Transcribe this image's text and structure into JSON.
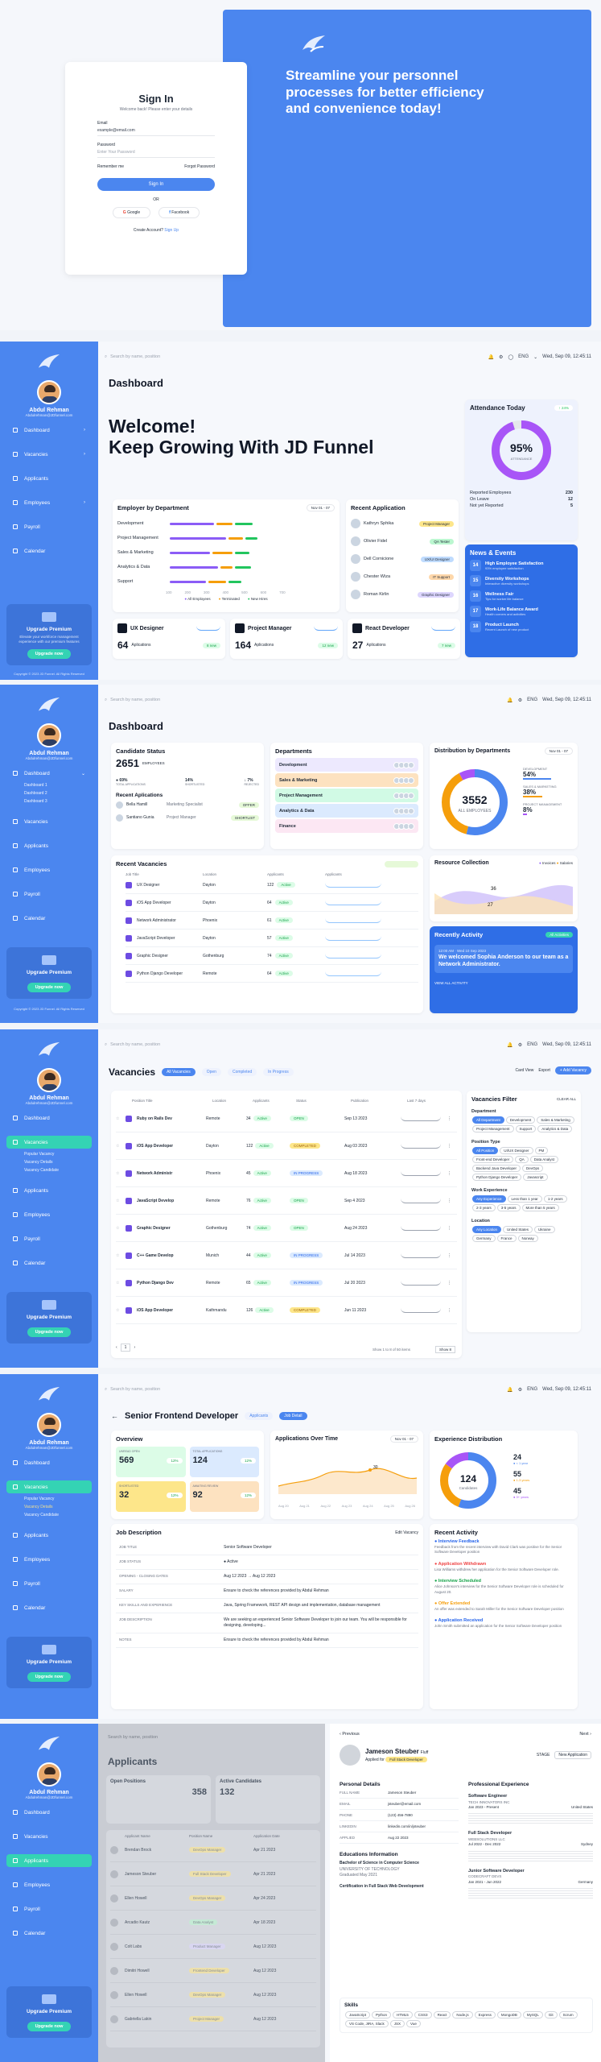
{
  "signin": {
    "hero": "Streamline your personnel processes for better efficiency and convenience today!",
    "title": "Sign In",
    "subtitle": "Welcome back! Please enter your details",
    "email_label": "Email",
    "email_value": "example@email.com",
    "password_label": "Password",
    "password_ph": "Enter Your Password",
    "remember": "Remember me",
    "forgot": "Forgot Password",
    "button": "Sign In",
    "or": "OR",
    "google": "Google",
    "facebook": "Facebook",
    "create": "Create Account?",
    "signup": "Sign Up"
  },
  "sidebar": {
    "name": "Abdul Rehman",
    "email": "Abdulrehman@JDfunnel.com",
    "items": [
      "Dashboard",
      "Vacancies",
      "Applicants",
      "Employees",
      "Payroll",
      "Calendar"
    ],
    "upgrade_title": "Upgrade Premium",
    "upgrade_desc": "Elevate your workforce management experience with our premium features",
    "upgrade_btn": "Upgrade now",
    "copyright": "Copyright © 2023 JD Funnel. All Rights Reserved",
    "sub": [
      "Dashboard 1",
      "Dashboard 2",
      "Dashboard 3"
    ],
    "vac_sub": [
      "Popular Vacancy",
      "Vacancy Details",
      "Vacancy Candidate"
    ]
  },
  "topbar": {
    "search": "Search by name, position",
    "lang": "ENG",
    "date": "Wed, Sep 09, 12:45:11"
  },
  "dash1": {
    "title": "Dashboard",
    "welcome1": "Welcome!",
    "welcome2": "Keep Growing With JD Funnel",
    "att_title": "Attendance Today",
    "att_badge": "↑ 24%",
    "att_pct": "95%",
    "att_label": "ATTENDANCE",
    "att_rows": [
      [
        "Reported Employees",
        "230"
      ],
      [
        "On Leave",
        "12"
      ],
      [
        "Not yet Reported",
        "5"
      ]
    ],
    "emp_title": "Employer by Department",
    "emp_filter": "Nov 01 - 07",
    "depts": [
      "Development",
      "Project Management",
      "Sales & Marketing",
      "Analytics & Data",
      "Support"
    ],
    "axis": [
      "100",
      "200",
      "300",
      "400",
      "500",
      "600",
      "700"
    ],
    "legend": [
      "All Employees",
      "Terminated",
      "New Hires"
    ],
    "recent_title": "Recent Application",
    "recent": [
      [
        "Kathryn Sphika",
        "Project Manager",
        "#fde68a"
      ],
      [
        "Olivier Fidel",
        "QA Tester",
        "#bbf7d0"
      ],
      [
        "Dell Cornicione",
        "UX/UI Designer",
        "#bfdbfe"
      ],
      [
        "Chester Wiza",
        "IT Support",
        "#fed7aa"
      ],
      [
        "Roman Kirlin",
        "Graphic Designer",
        "#ddd6fe"
      ]
    ],
    "news_title": "News & Events",
    "news": [
      [
        "14",
        "High Employee Satisfaction",
        "93% employee satisfaction"
      ],
      [
        "15",
        "Diversity Workshops",
        "Interactive diversity workshops"
      ],
      [
        "16",
        "Wellness Fair",
        "Tips for worker life balance"
      ],
      [
        "17",
        "Work-Life Balance Award",
        "Health corners and activities"
      ],
      [
        "18",
        "Product Launch",
        "Recent Launch of new product"
      ]
    ],
    "stats": [
      [
        "UX Designer",
        "64",
        "Aplications",
        "8 new"
      ],
      [
        "Project Manager",
        "164",
        "Aplications",
        "12 new"
      ],
      [
        "React Developer",
        "27",
        "Aplications",
        "7 new"
      ]
    ]
  },
  "dash2": {
    "title": "Dashboard",
    "cand_title": "Candidate Status",
    "cand_num": "2651",
    "cand_unit": "EMPLOYEES",
    "cand_stats": [
      [
        "● 69%",
        "TOTAL APPLICATIONS"
      ],
      [
        "14%",
        "SHORTLISTED"
      ],
      [
        "↓ 7%",
        "REJECTED"
      ]
    ],
    "recent_title": "Recent Aplications",
    "recent": [
      [
        "Bella Hamill",
        "Marketing Specialist",
        "OFFER"
      ],
      [
        "Santiano Gunia",
        "Project Manager",
        "SHORTLIST"
      ]
    ],
    "dept_title": "Departments",
    "depts": [
      [
        "Development",
        "#ede9fe"
      ],
      [
        "Sales & Marketing",
        "#fde2c0"
      ],
      [
        "Project Management",
        "#d1fae5"
      ],
      [
        "Analytics & Data",
        "#dbeafe"
      ],
      [
        "Finance",
        "#fce7f3"
      ]
    ],
    "dist_title": "Distribution by Departments",
    "dist_filter": "Nov 01 - 07",
    "dist_num": "3552",
    "dist_label": "ALL EMPLOYEES",
    "dist_rows": [
      [
        "DEVELOPMENT",
        "54%"
      ],
      [
        "SALES & MARKETING",
        "38%"
      ],
      [
        "PROJECT MANAGEMENT",
        "8%"
      ]
    ],
    "vac_title": "Recent Vacancies",
    "vac_cols": [
      "Job Title",
      "Location",
      "Applicants",
      "Applicants"
    ],
    "vac_rows": [
      [
        "UX Designer",
        "Dayton",
        "122"
      ],
      [
        "iOS App Developer",
        "Dayton",
        "64"
      ],
      [
        "Network Administrator",
        "Phoenix",
        "61"
      ],
      [
        "JavaScript Developer",
        "Dayton",
        "57"
      ],
      [
        "Graphic Designer",
        "Gothenburg",
        "74"
      ],
      [
        "Python Django Developer",
        "Remote",
        "64"
      ]
    ],
    "res_title": "Resource Collection",
    "res_legend": [
      "Invoices",
      "Salaries"
    ],
    "res_vals": [
      "36",
      "27"
    ],
    "act_title": "Recently Activity",
    "act_badge": "All Activities",
    "act_date": "12:00 AM · Wed 10 Sep 2023",
    "act_text": "We welcomed Sophia Anderson to our team as a Network Administrator.",
    "act_link": "VIEW ALL ACTIVITY"
  },
  "vac": {
    "title": "Vacancies",
    "tabs": [
      "All Vacancies",
      "Open",
      "Completed",
      "In Progress"
    ],
    "card_view": "Card View",
    "export": "Export",
    "add": "+ Add Vacancy",
    "cols": [
      "Position Title",
      "Location",
      "Applicants",
      "Status",
      "Publication",
      "Last 7 days"
    ],
    "rows": [
      [
        "Ruby on Rails Dev",
        "Remote",
        "34",
        "OPEN",
        "Sep 13 2023"
      ],
      [
        "iOS App Developer",
        "Dayton",
        "122",
        "COMPLETED",
        "Aug 03 2023"
      ],
      [
        "Network Administr",
        "Phoenix",
        "45",
        "IN PROGRESS",
        "Aug 18 2023"
      ],
      [
        "JavaScript Develop",
        "Remote",
        "76",
        "OPEN",
        "Sep 4 2023"
      ],
      [
        "Graphic Designer",
        "Gothenburg",
        "74",
        "OPEN",
        "Aug 24 2023"
      ],
      [
        "C++ Game Develop",
        "Munich",
        "44",
        "IN PROGRESS",
        "Jul 14 2023"
      ],
      [
        "Python Django Dev",
        "Remote",
        "65",
        "IN PROGRESS",
        "Jul 20 2023"
      ],
      [
        "iOS App Developer",
        "Kathmandu",
        "126",
        "COMPLETED",
        "Jun 11 2023"
      ]
    ],
    "pager": "Show 1 to 8 of 50 items",
    "perpage": "Show 8",
    "filter_title": "Vacancies Filter",
    "clear": "CLEAR ALL",
    "dept_label": "Department",
    "dept_chips": [
      "All Department",
      "Development",
      "Sales & Marketing",
      "Project Management",
      "Support",
      "Analytics & Data"
    ],
    "pos_label": "Position Type",
    "pos_chips": [
      "All Position",
      "UI/UX Designer",
      "PM",
      "Front-end Developer",
      "QA",
      "Data Analyst",
      "Backend Java Developer",
      "DevOps",
      "Python Django Developer",
      "Javascript"
    ],
    "exp_label": "Work Experience",
    "exp_chips": [
      "Any Experience",
      "Less than 1 year",
      "1-2 years",
      "2-3 years",
      "3-5 years",
      "More than 5 years"
    ],
    "loc_label": "Location",
    "loc_chips": [
      "Any Location",
      "United States",
      "Ukraine",
      "Germany",
      "France",
      "Norway"
    ]
  },
  "detail": {
    "back": "←",
    "title": "Senior Frontend Developer",
    "tab1": "Applicants",
    "tab2": "Job Detail",
    "overview": "Overview",
    "ov": [
      [
        "UNREAD OPEN",
        "569",
        "12%"
      ],
      [
        "TOTAL APPLICATIONS",
        "124",
        "12%"
      ],
      [
        "SHORTLISTED",
        "32",
        "12%"
      ],
      [
        "AWAITING REVIEW",
        "92",
        "12%"
      ]
    ],
    "apps_title": "Applications Over Time",
    "apps_filter": "Nov 01 - 07",
    "apps_x": [
      "Aug 20",
      "Aug 21",
      "Aug 22",
      "Aug 23",
      "Aug 24",
      "Aug 25",
      "Aug 26"
    ],
    "exp_title": "Experience Distribution",
    "exp_num": "124",
    "exp_label": "Candidates",
    "exp_rows": [
      [
        "24",
        "< 1 year"
      ],
      [
        "55",
        "1-3 years"
      ],
      [
        "45",
        "3+ years"
      ]
    ],
    "jd_title": "Job Description",
    "jd_edit": "Edit Vacancy",
    "jd": [
      [
        "JOB TITLE",
        "Senior Software Developer"
      ],
      [
        "JOB STATUS",
        "● Active"
      ],
      [
        "OPENING - CLOSING DATES",
        "Aug 12 2023 → Aug 12 2023"
      ],
      [
        "SALARY",
        "Ensure to check the references provided by Abdul Rehman"
      ],
      [
        "KEY SKILLS AND EXPERIENCE",
        "Java, Spring Framework, REST API design and implementation, database management"
      ],
      [
        "JOB DESCRIPTION",
        "We are seeking an experienced Senior Software Developer to join our team. You will be responsible for designing, developing..."
      ],
      [
        "NOTES",
        "Ensure to check the references provided by Abdul Rehman"
      ]
    ],
    "act_title": "Recent Activity",
    "acts": [
      [
        "Interview Feedback",
        "Feedback from the recent interview with David Clark was positive for the Senior Software Developer position"
      ],
      [
        "Application Withdrawn",
        "Lisa Williams withdrew her application for the Senior Software Developer role."
      ],
      [
        "Interview Scheduled",
        "Alice Johnson's interview for the Senior Software Developer role is scheduled for August 20."
      ],
      [
        "Offer Extended",
        "An offer was extended to Sarah Miller for the Senior Software Developer position"
      ],
      [
        "Application Received",
        "John Smith submitted an application for the Senior Software Developer position"
      ]
    ]
  },
  "apps": {
    "title": "Applicants",
    "open_label": "Open Positions",
    "open_num": "358",
    "active_label": "Active Candidates",
    "active_num": "132",
    "cols": [
      "Applicant Name",
      "Position Name",
      "Application Date"
    ],
    "rows": [
      [
        "Brendan Brock",
        "DevOps Manager",
        "Apr 21 2023"
      ],
      [
        "Jameson Steuber",
        "Full Stack Developer",
        "Apr 21 2023"
      ],
      [
        "Ellen Howell",
        "DevOps Manager",
        "Apr 24 2023"
      ],
      [
        "Arcadio Kautz",
        "Data Analyst",
        "Apr 18 2023"
      ],
      [
        "Colt Labs",
        "Product Manager",
        "Aug 12 2023"
      ],
      [
        "Dimitri Howell",
        "Frontend Developer",
        "Aug 12 2023"
      ],
      [
        "Ellen Howell",
        "DevOps Manager",
        "Aug 12 2023"
      ],
      [
        "Gabriella Lakin",
        "Project Manager",
        "Aug 12 2023"
      ]
    ],
    "prev": "Previous",
    "next": "Next",
    "prof_name": "Jameson Steuber",
    "prof_tag": "Fluff",
    "prof_applied": "Applied for",
    "prof_role": "Full Stack Developer",
    "stage": "STAGE",
    "stage_val": "New Application",
    "pd_title": "Personal Details",
    "pd": [
      [
        "FULL NAME",
        "Jameson Steuber"
      ],
      [
        "EMAIL",
        "jsteuber@email.com"
      ],
      [
        "PHONE",
        "(123) 456-7890"
      ],
      [
        "LINKEDIN",
        "linkedin.com/in/jsteuber"
      ],
      [
        "APPLIED",
        "Aug 22 2023"
      ]
    ],
    "edu_title": "Educations Information",
    "edu": [
      "Bachelor of Science in Computer Science",
      "UNIVERSITY OF TECHNOLOGY",
      "Graduated May 2021",
      "Certification in Full Stack Web Development"
    ],
    "pe_title": "Professional Experience",
    "pe": [
      [
        "Software Engineer",
        "TECH INNOVATORS INC",
        "Jan 2023 - Present",
        "United States"
      ],
      [
        "Full Stack Developer",
        "WEBSOLUTIONS LLC",
        "Jul 2022 - Dec 2022",
        "Sydney"
      ],
      [
        "Junior Software Developer",
        "CODECRAFT DEVS",
        "Jan 2021 - Jun 2022",
        "Germany"
      ]
    ],
    "skills_title": "Skills",
    "skills": [
      "JavaScript",
      "Python",
      "HTML5",
      "CSS3",
      "React",
      "Node.js",
      "Express",
      "MongoDB",
      "MySQL",
      "Git",
      "Scrum",
      "VS Code, JIRA, Slack",
      "JSX",
      "Vue"
    ]
  },
  "colors": {
    "brand": "#4b86ef",
    "accent": "#34d3b4",
    "purple": "#8b5cf6",
    "orange": "#f59e0b",
    "green": "#22c55e"
  }
}
